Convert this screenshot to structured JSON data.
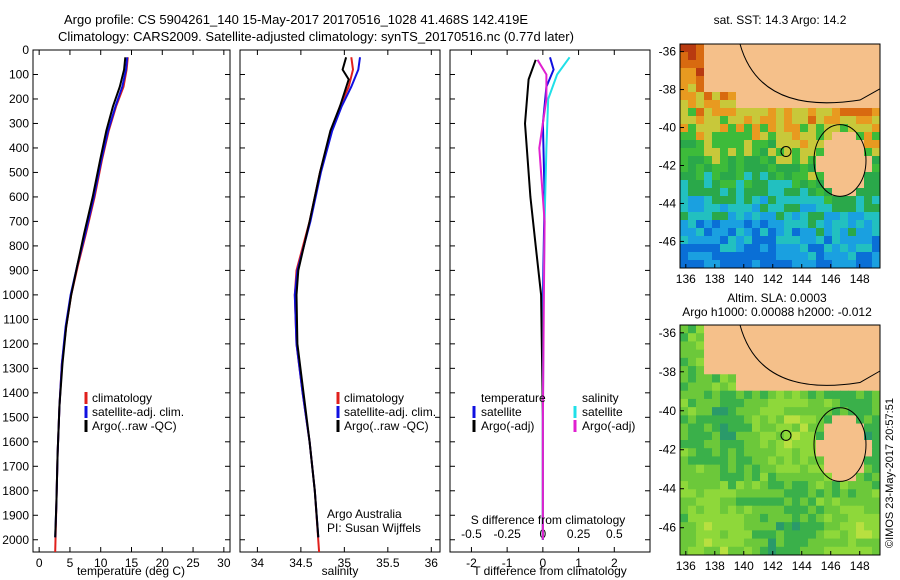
{
  "header": {
    "line1": "Argo profile: CS 5904261_140 15-May-2017 20170516_1028 41.468S 142.419E",
    "line2": "Climatology: CARS2009. Satellite-adjusted climatology: synTS_20170516.nc (0.77d later)"
  },
  "colors": {
    "climatology": "#e0201c",
    "satellite": "#1010e0",
    "argo": "#000000",
    "satellite_salinity": "#20e0e8",
    "argo_salinity": "#e020d0",
    "land": "#f5c08a"
  },
  "chart_data": [
    {
      "type": "line",
      "xlabel": "temperature (deg C)",
      "ylabel": "",
      "xlim": [
        -1,
        31
      ],
      "ylim": [
        2050,
        0
      ],
      "xticks": [
        0,
        5,
        10,
        15,
        20,
        25,
        30
      ],
      "yticks": [
        0,
        100,
        200,
        300,
        400,
        500,
        600,
        700,
        800,
        900,
        1000,
        1100,
        1200,
        1300,
        1400,
        1500,
        1600,
        1700,
        1800,
        1900,
        2000
      ],
      "legend": [
        "climatology",
        "satellite-adj. clim.",
        "Argo(..raw -QC)"
      ],
      "legend_position": "bottom-right",
      "series": [
        {
          "name": "climatology",
          "color": "#e0201c",
          "points": [
            [
              14.4,
              30
            ],
            [
              14.2,
              80
            ],
            [
              13.7,
              150
            ],
            [
              12.5,
              230
            ],
            [
              11.3,
              330
            ],
            [
              10.2,
              450
            ],
            [
              9.0,
              600
            ],
            [
              7.6,
              750
            ],
            [
              6.3,
              880
            ],
            [
              5.2,
              1000
            ],
            [
              4.4,
              1130
            ],
            [
              3.7,
              1280
            ],
            [
              3.3,
              1450
            ],
            [
              3.0,
              1650
            ],
            [
              2.8,
              1850
            ],
            [
              2.6,
              2050
            ]
          ]
        },
        {
          "name": "satellite-adj. clim.",
          "color": "#1010e0",
          "points": [
            [
              14.3,
              30
            ],
            [
              14.1,
              80
            ],
            [
              13.5,
              150
            ],
            [
              12.4,
              230
            ],
            [
              11.2,
              330
            ],
            [
              10.1,
              450
            ],
            [
              8.9,
              600
            ],
            [
              7.5,
              750
            ],
            [
              6.2,
              880
            ],
            [
              5.1,
              1000
            ],
            [
              4.3,
              1130
            ],
            [
              3.7,
              1280
            ],
            [
              3.3,
              1450
            ],
            [
              3.0,
              1650
            ],
            [
              2.8,
              1850
            ],
            [
              2.6,
              1990
            ]
          ]
        },
        {
          "name": "Argo(..raw -QC)",
          "color": "#000000",
          "points": [
            [
              14.0,
              30
            ],
            [
              13.8,
              80
            ],
            [
              13.1,
              150
            ],
            [
              12.0,
              230
            ],
            [
              10.9,
              330
            ],
            [
              9.9,
              450
            ],
            [
              8.7,
              600
            ],
            [
              7.3,
              750
            ],
            [
              6.2,
              880
            ],
            [
              5.2,
              1000
            ],
            [
              4.4,
              1130
            ],
            [
              3.8,
              1280
            ],
            [
              3.3,
              1450
            ],
            [
              3.0,
              1650
            ],
            [
              2.8,
              1850
            ],
            [
              2.6,
              1990
            ]
          ]
        }
      ]
    },
    {
      "type": "line",
      "xlabel": "salinity",
      "ylabel": "",
      "xlim": [
        33.8,
        36.1
      ],
      "ylim": [
        2050,
        0
      ],
      "xticks": [
        34,
        34.5,
        35,
        35.5,
        36
      ],
      "legend": [
        "climatology",
        "satellite-adj. clim.",
        "Argo(..raw -QC)"
      ],
      "legend_position": "bottom-right",
      "annotations": [
        "Argo Australia",
        "PI: Susan Wijffels"
      ],
      "series": [
        {
          "name": "climatology",
          "color": "#e0201c",
          "points": [
            [
              35.08,
              30
            ],
            [
              35.1,
              80
            ],
            [
              35.05,
              150
            ],
            [
              34.95,
              230
            ],
            [
              34.85,
              330
            ],
            [
              34.72,
              500
            ],
            [
              34.6,
              700
            ],
            [
              34.45,
              900
            ],
            [
              34.43,
              1000
            ],
            [
              34.45,
              1200
            ],
            [
              34.52,
              1400
            ],
            [
              34.6,
              1600
            ],
            [
              34.66,
              1800
            ],
            [
              34.71,
              2050
            ]
          ]
        },
        {
          "name": "satellite-adj. clim.",
          "color": "#1010e0",
          "points": [
            [
              35.18,
              30
            ],
            [
              35.16,
              80
            ],
            [
              35.08,
              150
            ],
            [
              34.97,
              230
            ],
            [
              34.86,
              330
            ],
            [
              34.73,
              500
            ],
            [
              34.61,
              700
            ],
            [
              34.46,
              900
            ],
            [
              34.43,
              1000
            ],
            [
              34.45,
              1200
            ],
            [
              34.52,
              1400
            ],
            [
              34.6,
              1600
            ],
            [
              34.66,
              1800
            ],
            [
              34.7,
              1990
            ]
          ]
        },
        {
          "name": "Argo(..raw -QC)",
          "color": "#000000",
          "points": [
            [
              35.02,
              30
            ],
            [
              34.98,
              80
            ],
            [
              35.05,
              120
            ],
            [
              34.95,
              230
            ],
            [
              34.84,
              330
            ],
            [
              34.72,
              500
            ],
            [
              34.6,
              700
            ],
            [
              34.47,
              900
            ],
            [
              34.45,
              1000
            ],
            [
              34.46,
              1200
            ],
            [
              34.53,
              1400
            ],
            [
              34.6,
              1600
            ],
            [
              34.66,
              1800
            ],
            [
              34.7,
              1990
            ]
          ]
        }
      ]
    },
    {
      "type": "line",
      "xlabel": "T difference from climatology",
      "xlabel_top": "S difference from climatology",
      "ylabel": "",
      "xlim": [
        -2.6,
        3.0
      ],
      "ylim": [
        2050,
        0
      ],
      "xticks": [
        -2,
        -1,
        0,
        1,
        2
      ],
      "xticks_top": [
        -0.5,
        -0.25,
        0,
        0.25,
        0.5
      ],
      "legend_left_title": "temperature",
      "legend_right_title": "salinity",
      "legend_left": [
        "satellite",
        "Argo(-adj)"
      ],
      "legend_right": [
        "satellite",
        "Argo(-adj)"
      ],
      "series": [
        {
          "name": "T satellite",
          "color": "#1010e0",
          "points": [
            [
              0.2,
              30
            ],
            [
              0.3,
              80
            ],
            [
              0.1,
              150
            ],
            [
              0.0,
              300
            ],
            [
              0.05,
              600
            ],
            [
              0.0,
              1000
            ],
            [
              0.0,
              1500
            ],
            [
              0.0,
              2000
            ]
          ]
        },
        {
          "name": "T Argo(-adj)",
          "color": "#000000",
          "points": [
            [
              -0.2,
              40
            ],
            [
              -0.4,
              120
            ],
            [
              -0.5,
              300
            ],
            [
              -0.35,
              600
            ],
            [
              -0.2,
              800
            ],
            [
              -0.05,
              1000
            ],
            [
              0.0,
              1500
            ],
            [
              0.0,
              2000
            ]
          ]
        },
        {
          "name": "S satellite",
          "color": "#20e0e8",
          "points": [
            [
              0.75,
              30
            ],
            [
              0.4,
              100
            ],
            [
              0.15,
              200
            ],
            [
              0.1,
              400
            ],
            [
              0.05,
              700
            ],
            [
              0.02,
              1000
            ],
            [
              0.0,
              1500
            ],
            [
              0.0,
              2000
            ]
          ]
        },
        {
          "name": "S Argo(-adj)",
          "color": "#e020d0",
          "points": [
            [
              -0.15,
              40
            ],
            [
              0.1,
              100
            ],
            [
              0.1,
              200
            ],
            [
              -0.1,
              400
            ],
            [
              0.05,
              700
            ],
            [
              0.03,
              1000
            ],
            [
              0.0,
              1500
            ],
            [
              0.0,
              2000
            ]
          ]
        }
      ]
    },
    {
      "type": "heatmap",
      "title": "sat. SST: 14.3  Argo: 14.2",
      "xticks": [
        136,
        138,
        140,
        142,
        144,
        146,
        148
      ],
      "yticks": [
        -36,
        -38,
        -40,
        -42,
        -44,
        -46
      ]
    },
    {
      "type": "heatmap",
      "title": "Altim. SLA: 0.0003",
      "subtitle": "Argo h1000: 0.00088 h2000: -0.012",
      "xticks": [
        136,
        138,
        140,
        142,
        144,
        146,
        148
      ],
      "yticks": [
        -36,
        -38,
        -40,
        -42,
        -44,
        -46
      ],
      "side_text": "©IMOS 23-May-2017 20:57:51"
    }
  ]
}
